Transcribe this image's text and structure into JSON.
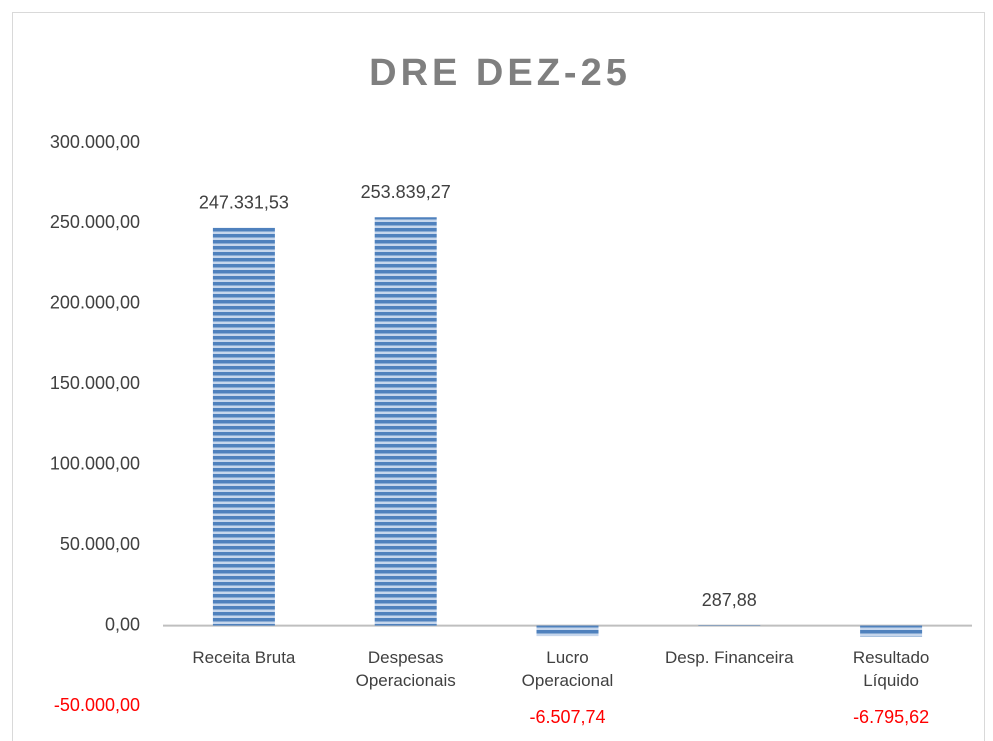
{
  "chart_data": {
    "type": "bar",
    "title": "DRE DEZ-25",
    "categories": [
      "Receita Bruta",
      "Despesas Operacionais",
      "Lucro Operacional",
      "Desp. Financeira",
      "Resultado Líquido"
    ],
    "values": [
      247331.53,
      253839.27,
      -6507.74,
      287.88,
      -6795.62
    ],
    "value_labels": [
      "247.331,53",
      "253.839,27",
      "-6.507,74",
      "287,88",
      "-6.795,62"
    ],
    "color": "#4f81bd",
    "negative_color": "#ff0000",
    "ylim": [
      -50000,
      300000
    ],
    "yticks": [
      {
        "value": 300000,
        "label": "300.000,00"
      },
      {
        "value": 250000,
        "label": "250.000,00"
      },
      {
        "value": 200000,
        "label": "200.000,00"
      },
      {
        "value": 150000,
        "label": "150.000,00"
      },
      {
        "value": 100000,
        "label": "100.000,00"
      },
      {
        "value": 50000,
        "label": "50.000,00"
      },
      {
        "value": 0,
        "label": "0,00"
      },
      {
        "value": -50000,
        "label": "-50.000,00"
      }
    ],
    "grid": false
  }
}
